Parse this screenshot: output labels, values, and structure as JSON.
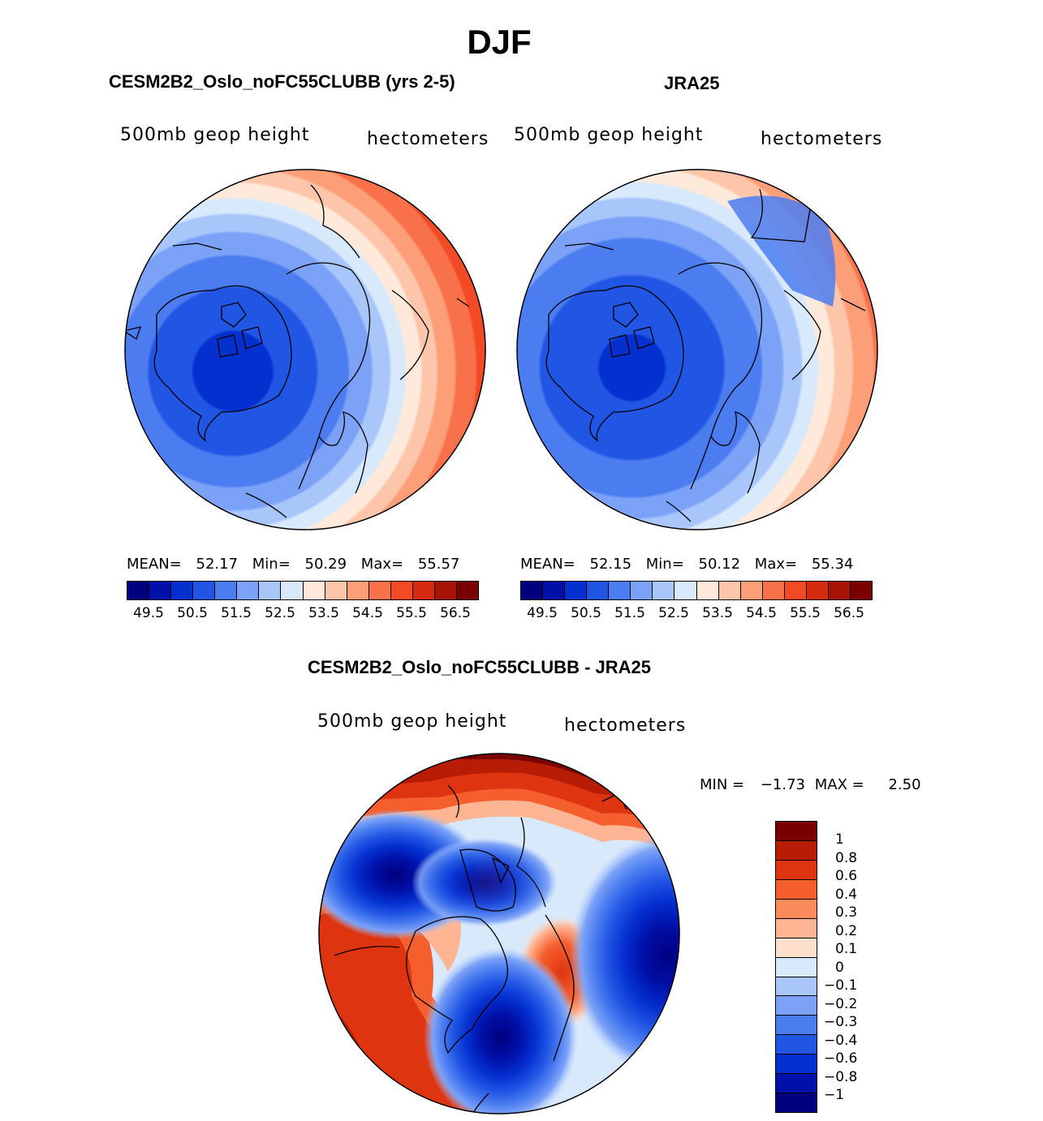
{
  "figure": {
    "season_title": "DJF",
    "colors": {
      "seq": [
        "#00007f",
        "#0010a8",
        "#0530d0",
        "#2156e4",
        "#4b7cf0",
        "#7ba2f7",
        "#a9c6fb",
        "#d8e9fc",
        "#fee9da",
        "#fdc6ab",
        "#fc9e77",
        "#f9714a",
        "#f24a24",
        "#d52a0f",
        "#a71406",
        "#7a0000"
      ],
      "diff": [
        "#7a0000",
        "#b71c05",
        "#de3510",
        "#f55f2e",
        "#fb8b5b",
        "#fdb593",
        "#fee0cd",
        "#d9e9fc",
        "#a9c6fb",
        "#7ba2f7",
        "#4b7cf0",
        "#2156e4",
        "#0530d0",
        "#0010a8",
        "#00007f"
      ]
    }
  },
  "panel_left": {
    "case_title": "CESM2B2_Oslo_noFC55CLUBB (yrs 2-5)",
    "field_label": "500mb geop height",
    "units_label": "hectometers",
    "stats": {
      "mean_label": "MEAN=",
      "mean": "52.17",
      "min_label": "Min=",
      "min": "50.29",
      "max_label": "Max=",
      "max": "55.57"
    },
    "colorbar_ticks": [
      "49.5",
      "50.5",
      "51.5",
      "52.5",
      "53.5",
      "54.5",
      "55.5",
      "56.5"
    ]
  },
  "panel_right": {
    "case_title": "JRA25",
    "field_label": "500mb geop height",
    "units_label": "hectometers",
    "stats": {
      "mean_label": "MEAN=",
      "mean": "52.15",
      "min_label": "Min=",
      "min": "50.12",
      "max_label": "Max=",
      "max": "55.34"
    },
    "colorbar_ticks": [
      "49.5",
      "50.5",
      "51.5",
      "52.5",
      "53.5",
      "54.5",
      "55.5",
      "56.5"
    ]
  },
  "panel_diff": {
    "case_title": "CESM2B2_Oslo_noFC55CLUBB - JRA25",
    "field_label": "500mb geop height",
    "units_label": "hectometers",
    "stats": {
      "min_label": "MIN =",
      "min": "−1.73",
      "max_label": "MAX =",
      "max": "2.50"
    },
    "colorbar_ticks": [
      "1",
      "0.8",
      "0.6",
      "0.4",
      "0.3",
      "0.2",
      "0.1",
      "0",
      "−0.1",
      "−0.2",
      "−0.3",
      "−0.4",
      "−0.6",
      "−0.8",
      "−1"
    ]
  }
}
